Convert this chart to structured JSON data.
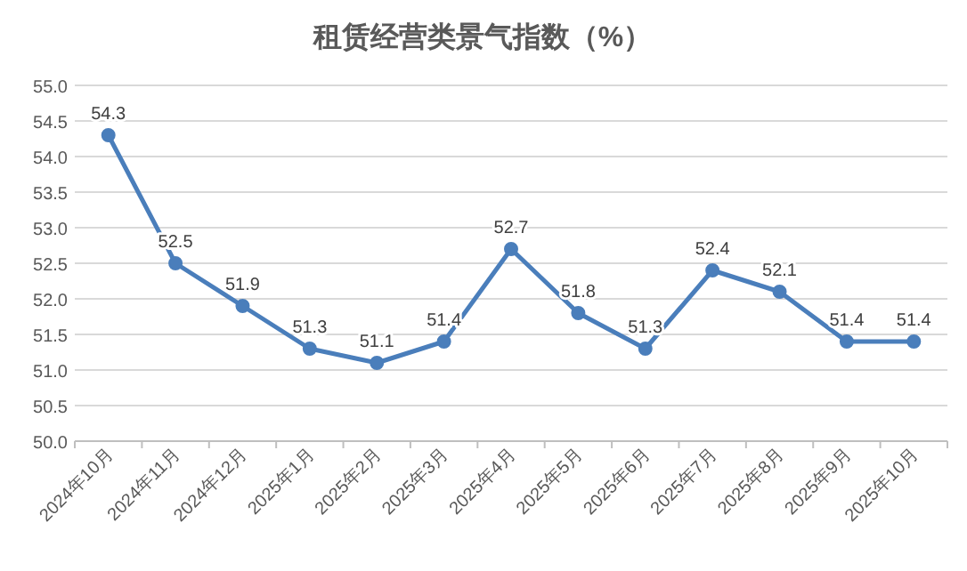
{
  "chart_data": {
    "type": "line",
    "title": "租赁经营类景气指数（%）",
    "categories": [
      "2024年10月",
      "2024年11月",
      "2024年12月",
      "2025年1月",
      "2025年2月",
      "2025年3月",
      "2025年4月",
      "2025年5月",
      "2025年6月",
      "2025年7月",
      "2025年8月",
      "2025年9月",
      "2025年10月"
    ],
    "series": [
      {
        "color": "#4a7ebb",
        "values": [
          54.3,
          52.5,
          51.9,
          51.3,
          51.1,
          51.4,
          52.7,
          51.8,
          51.3,
          52.4,
          52.1,
          51.4,
          51.4
        ]
      }
    ],
    "ylim": [
      50,
      55
    ],
    "yticks": [
      {
        "value": 50,
        "label": "50.0"
      },
      {
        "value": 50.5,
        "label": "50.5"
      },
      {
        "value": 51,
        "label": "51.0"
      },
      {
        "value": 51.5,
        "label": "51.5"
      },
      {
        "value": 52,
        "label": "52.0"
      },
      {
        "value": 52.5,
        "label": "52.5"
      },
      {
        "value": 53,
        "label": "53.0"
      },
      {
        "value": 53.5,
        "label": "53.5"
      },
      {
        "value": 54,
        "label": "54.0"
      },
      {
        "value": 54.5,
        "label": "54.5"
      },
      {
        "value": 55,
        "label": "55.0"
      }
    ],
    "grid": "y",
    "marker": "circle",
    "line_style": "solid",
    "data_labels": true
  }
}
